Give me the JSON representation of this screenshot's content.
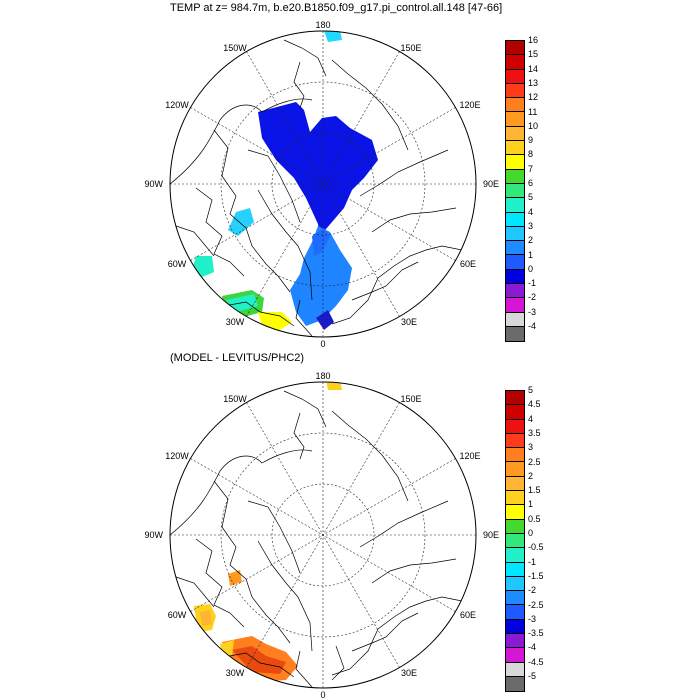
{
  "panels": [
    {
      "title": "TEMP at z= 984.7m, b.e20.B1850.f09_g17.pi_control.all.148 [47-66]",
      "longitude_labels": {
        "top": "180",
        "bottom": "0",
        "left": "90W",
        "right": "90E",
        "upper_left_1": "150W",
        "upper_left_2": "120W",
        "upper_right_1": "150E",
        "upper_right_2": "120E",
        "lower_left_1": "60W",
        "lower_left_2": "30W",
        "lower_right_1": "60E",
        "lower_right_2": "30E"
      },
      "colorbar": {
        "labels": [
          "16",
          "15",
          "14",
          "13",
          "12",
          "11",
          "10",
          "9",
          "8",
          "7",
          "6",
          "5",
          "4",
          "3",
          "2",
          "1",
          "0",
          "-1",
          "-2",
          "-3",
          "-4"
        ],
        "colors": [
          "#b30000",
          "#d10000",
          "#ee1111",
          "#ff3b1a",
          "#ff7f1f",
          "#ff991f",
          "#ffb433",
          "#ffd11f",
          "#ffff00",
          "#44d92e",
          "#33e87a",
          "#22f0c8",
          "#00e6ff",
          "#1ec8ff",
          "#1e8cff",
          "#1e5aff",
          "#0000e0",
          "#8a1ad4",
          "#d616d6",
          "#d8d8d8",
          "#6b6b6b"
        ]
      }
    },
    {
      "title": "(MODEL - LEVITUS/PHC2)",
      "longitude_labels": {
        "top": "180",
        "bottom": "0",
        "left": "90W",
        "right": "90E",
        "upper_left_1": "150W",
        "upper_left_2": "120W",
        "upper_right_1": "150E",
        "upper_right_2": "120E",
        "lower_left_1": "60W",
        "lower_left_2": "30W",
        "lower_right_1": "60E",
        "lower_right_2": "30E"
      },
      "colorbar": {
        "labels": [
          "5",
          "4.5",
          "4",
          "3.5",
          "3",
          "2.5",
          "2",
          "1.5",
          "1",
          "0.5",
          "0",
          "-0.5",
          "-1",
          "-1.5",
          "-2",
          "-2.5",
          "-3",
          "-3.5",
          "-4",
          "-4.5",
          "-5"
        ],
        "colors": [
          "#b30000",
          "#d10000",
          "#ee1111",
          "#ff3b1a",
          "#ff7f1f",
          "#ff991f",
          "#ffb433",
          "#ffd11f",
          "#ffff00",
          "#44d92e",
          "#33e87a",
          "#22f0c8",
          "#00e6ff",
          "#1ec8ff",
          "#1e8cff",
          "#1e5aff",
          "#0000e0",
          "#8a1ad4",
          "#d616d6",
          "#d8d8d8",
          "#6b6b6b"
        ]
      }
    }
  ]
}
